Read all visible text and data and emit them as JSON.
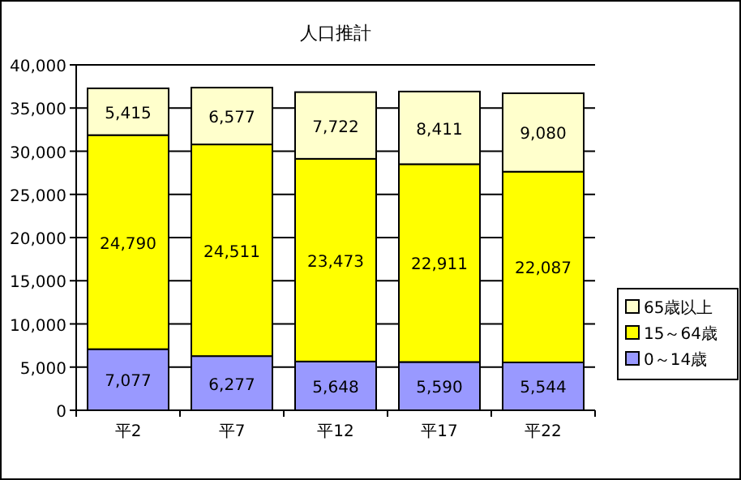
{
  "chart_data": {
    "type": "bar",
    "title": "人口推計",
    "stacked": true,
    "categories": [
      "平2",
      "平7",
      "平12",
      "平17",
      "平22"
    ],
    "series": [
      {
        "name": "0～14歳",
        "color": "#9999ff",
        "values": [
          7077,
          6277,
          5648,
          5590,
          5544
        ],
        "value_labels": [
          "7,077",
          "6,277",
          "5,648",
          "5,590",
          "5,544"
        ]
      },
      {
        "name": "15～64歳",
        "color": "#ffff00",
        "values": [
          24790,
          24511,
          23473,
          22911,
          22087
        ],
        "value_labels": [
          "24,790",
          "24,511",
          "23,473",
          "22,911",
          "22,087"
        ]
      },
      {
        "name": "65歳以上",
        "color": "#ffffcc",
        "values": [
          5415,
          6577,
          7722,
          8411,
          9080
        ],
        "value_labels": [
          "5,415",
          "6,577",
          "7,722",
          "8,411",
          "9,080"
        ]
      }
    ],
    "ylim": [
      0,
      40000
    ],
    "yticks": [
      0,
      {
        "value": 5000,
        "label": "5,000"
      },
      {
        "value": 10000,
        "label": "10,000"
      },
      {
        "value": 15000,
        "label": "15,000"
      },
      {
        "value": 20000,
        "label": "20,000"
      },
      {
        "value": 25000,
        "label": "25,000"
      },
      {
        "value": 30000,
        "label": "30,000"
      },
      {
        "value": 35000,
        "label": "35,000"
      },
      {
        "value": 40000,
        "label": "40,000"
      }
    ],
    "grid": "y",
    "legend": "right"
  }
}
